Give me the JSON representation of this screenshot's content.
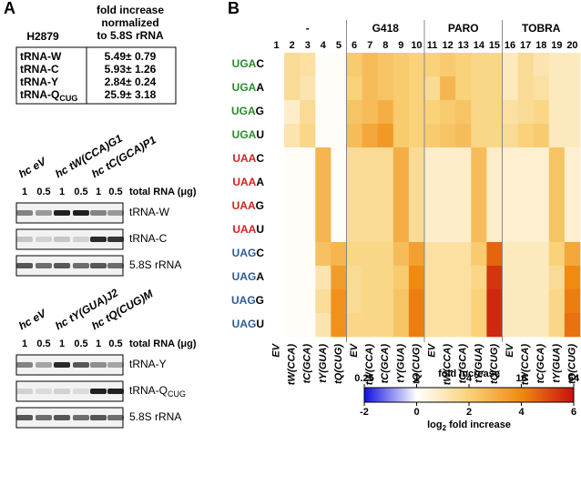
{
  "panel_a": {
    "letter": "A",
    "table": {
      "cell_line": "H2879",
      "header": [
        "fold increase",
        "normalized",
        "to 5.8S rRNA"
      ],
      "rows": [
        {
          "name": "tRNA-W",
          "sub": "",
          "value": "5.49± 0.79"
        },
        {
          "name": "tRNA-C",
          "sub": "",
          "value": "5.93± 1.26"
        },
        {
          "name": "tRNA-Y",
          "sub": "",
          "value": "2.84± 0.24"
        },
        {
          "name": "tRNA-Q",
          "sub": "CUG",
          "value": "25.9± 3.18"
        }
      ]
    },
    "blots": [
      {
        "strains": [
          "hc eV",
          "hc tW(CCA)G1",
          "hc tC(GCA)P1"
        ],
        "lanes": [
          "1",
          "0.5",
          "1",
          "0.5",
          "1",
          "0.5"
        ],
        "amount_label": "total RNA (μg)",
        "bands": [
          {
            "name": "tRNA-W",
            "sub": ""
          },
          {
            "name": "tRNA-C",
            "sub": ""
          },
          {
            "name": "5.8S rRNA",
            "sub": ""
          }
        ]
      },
      {
        "strains": [
          "hc eV",
          "hc tY(GUA)J2",
          "hc tQ(CUG)M"
        ],
        "lanes": [
          "1",
          "0.5",
          "1",
          "0.5",
          "1",
          "0.5"
        ],
        "amount_label": "total RNA (μg)",
        "bands": [
          {
            "name": "tRNA-Y",
            "sub": ""
          },
          {
            "name": "tRNA-Q",
            "sub": "CUG"
          },
          {
            "name": "5.8S rRNA",
            "sub": ""
          }
        ]
      }
    ]
  },
  "panel_b": {
    "letter": "B",
    "groups": [
      "-",
      "G418",
      "PARO",
      "TOBRA"
    ],
    "columns": [
      1,
      2,
      3,
      4,
      5,
      6,
      7,
      8,
      9,
      10,
      11,
      12,
      13,
      14,
      15,
      16,
      17,
      18,
      19,
      20
    ],
    "column_labels": [
      "EV",
      "tW(CCA)",
      "tC(GCA)",
      "tY(GUA)",
      "tQ(CUG)",
      "EV",
      "tW(CCA)",
      "tC(GCA)",
      "tY(GUA)",
      "tQ(CUG)",
      "EV",
      "tW(CCA)",
      "tC(GCA)",
      "tY(GUA)",
      "tQ(CUG)",
      "EV",
      "tW(CCA)",
      "tC(GCA)",
      "tY(GUA)",
      "tQ(CUG)"
    ],
    "rows": [
      {
        "codon": "UGA",
        "base": "C",
        "color": "#2a8a2a"
      },
      {
        "codon": "UGA",
        "base": "A",
        "color": "#2a8a2a"
      },
      {
        "codon": "UGA",
        "base": "G",
        "color": "#2a8a2a"
      },
      {
        "codon": "UGA",
        "base": "U",
        "color": "#2a8a2a"
      },
      {
        "codon": "UAA",
        "base": "C",
        "color": "#d42020"
      },
      {
        "codon": "UAA",
        "base": "A",
        "color": "#d42020"
      },
      {
        "codon": "UAA",
        "base": "G",
        "color": "#d42020"
      },
      {
        "codon": "UAA",
        "base": "U",
        "color": "#d42020"
      },
      {
        "codon": "UAG",
        "base": "C",
        "color": "#2f5a96"
      },
      {
        "codon": "UAG",
        "base": "A",
        "color": "#2f5a96"
      },
      {
        "codon": "UAG",
        "base": "G",
        "color": "#2f5a96"
      },
      {
        "codon": "UAG",
        "base": "U",
        "color": "#2f5a96"
      }
    ],
    "values": [
      [
        0,
        1.6,
        1.4,
        0.1,
        0.1,
        2.2,
        2.6,
        2.4,
        2.2,
        2.0,
        2.0,
        2.2,
        2.0,
        1.8,
        1.8,
        1.0,
        1.6,
        1.2,
        1.0,
        1.0
      ],
      [
        0,
        1.6,
        1.2,
        0.1,
        0.1,
        2.0,
        2.6,
        2.4,
        2.2,
        2.0,
        1.6,
        2.8,
        2.0,
        1.8,
        1.8,
        1.0,
        1.6,
        1.4,
        1.0,
        1.0
      ],
      [
        0,
        0.8,
        1.6,
        0.1,
        0.1,
        2.4,
        2.6,
        3.0,
        2.2,
        2.0,
        2.0,
        2.2,
        2.4,
        1.8,
        1.8,
        1.4,
        1.6,
        1.8,
        1.0,
        1.0
      ],
      [
        0,
        1.2,
        1.8,
        0.1,
        0.1,
        2.6,
        3.2,
        3.6,
        2.2,
        2.0,
        2.2,
        2.4,
        2.6,
        1.8,
        1.8,
        1.6,
        2.0,
        2.2,
        1.0,
        1.0
      ],
      [
        0,
        0.1,
        0.1,
        2.8,
        0.1,
        1.6,
        1.6,
        1.6,
        3.0,
        1.6,
        0.8,
        0.8,
        0.8,
        2.6,
        0.8,
        0.7,
        0.7,
        0.7,
        2.4,
        0.7
      ],
      [
        0,
        0.1,
        0.1,
        2.8,
        0.1,
        1.6,
        1.6,
        1.6,
        3.0,
        1.6,
        0.8,
        0.8,
        0.8,
        2.6,
        0.8,
        0.7,
        0.7,
        0.7,
        2.4,
        0.7
      ],
      [
        0,
        0.1,
        0.1,
        2.8,
        0.1,
        1.6,
        1.6,
        1.6,
        3.0,
        1.6,
        0.8,
        0.8,
        0.8,
        2.6,
        0.8,
        0.7,
        0.7,
        0.7,
        2.4,
        0.7
      ],
      [
        0,
        0.1,
        0.1,
        2.8,
        0.1,
        1.6,
        1.6,
        1.6,
        3.0,
        1.6,
        0.8,
        0.8,
        0.8,
        2.6,
        0.8,
        0.7,
        0.7,
        0.7,
        2.4,
        0.7
      ],
      [
        0,
        0.1,
        0.1,
        2.5,
        2.8,
        1.8,
        1.8,
        1.8,
        2.6,
        3.4,
        1.4,
        1.4,
        1.4,
        2.2,
        4.6,
        1.0,
        1.0,
        1.0,
        2.0,
        3.2
      ],
      [
        0,
        0.1,
        0.1,
        1.2,
        3.5,
        1.6,
        1.8,
        1.8,
        2.2,
        4.0,
        1.4,
        1.4,
        1.4,
        1.8,
        5.4,
        1.0,
        1.0,
        1.0,
        1.6,
        4.0
      ],
      [
        0,
        0.1,
        0.1,
        1.5,
        3.8,
        1.6,
        1.8,
        1.8,
        2.4,
        4.2,
        1.4,
        1.4,
        1.4,
        2.0,
        5.6,
        1.0,
        1.0,
        1.0,
        1.8,
        4.2
      ],
      [
        0,
        0.1,
        0.1,
        1.2,
        3.8,
        1.8,
        1.8,
        1.8,
        2.4,
        4.2,
        1.4,
        1.4,
        1.4,
        2.0,
        5.6,
        1.0,
        1.0,
        1.0,
        1.8,
        4.4
      ]
    ],
    "colorbar": {
      "title": "fold increase",
      "axis_label": [
        "log",
        "2",
        " fold increase"
      ],
      "range": [
        -2,
        6
      ],
      "fold_ticks": [
        {
          "value": -2,
          "label": "0.25"
        },
        {
          "value": 0,
          "label": "1"
        },
        {
          "value": 2,
          "label": "4"
        },
        {
          "value": 4,
          "label": "16"
        },
        {
          "value": 6,
          "label": "64"
        }
      ],
      "log_ticks": [
        -2,
        0,
        2,
        4,
        6
      ],
      "stops": [
        {
          "value": -2,
          "color": "#1010e0"
        },
        {
          "value": 0,
          "color": "#ffffff"
        },
        {
          "value": 2,
          "color": "#f9d27a"
        },
        {
          "value": 4,
          "color": "#f08a10"
        },
        {
          "value": 6,
          "color": "#c81010"
        }
      ]
    }
  }
}
